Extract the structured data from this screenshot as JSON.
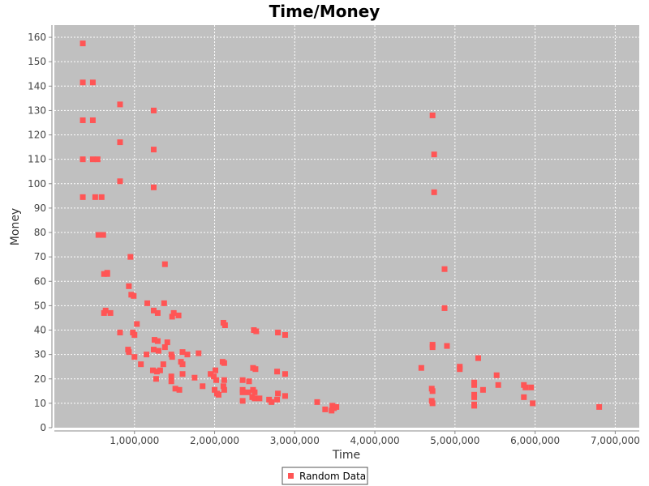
{
  "chart_data": {
    "type": "scatter",
    "title": "Time/Money",
    "xlabel": "Time",
    "ylabel": "Money",
    "xlim": [
      0,
      7300000
    ],
    "ylim": [
      0,
      165
    ],
    "x_ticks": [
      1000000,
      2000000,
      3000000,
      4000000,
      5000000,
      6000000,
      7000000
    ],
    "x_tick_labels": [
      "1,000,000",
      "2,000,000",
      "3,000,000",
      "4,000,000",
      "5,000,000",
      "6,000,000",
      "7,000,000"
    ],
    "y_ticks": [
      0,
      10,
      20,
      30,
      40,
      50,
      60,
      70,
      80,
      90,
      100,
      110,
      120,
      130,
      140,
      150,
      160
    ],
    "y_tick_labels": [
      "0",
      "10",
      "20",
      "30",
      "40",
      "50",
      "60",
      "70",
      "80",
      "90",
      "100",
      "110",
      "120",
      "130",
      "140",
      "150",
      "160"
    ],
    "grid": true,
    "legend": "bottom-center",
    "colors": {
      "series": "#ff5555",
      "plot_bg": "#c0c0c0",
      "grid": "#ffffff"
    },
    "series": [
      {
        "name": "Random Data",
        "points": [
          [
            355000,
            157.5
          ],
          [
            355000,
            141.5
          ],
          [
            480000,
            141.5
          ],
          [
            355000,
            126
          ],
          [
            480000,
            126
          ],
          [
            355000,
            110
          ],
          [
            480000,
            110
          ],
          [
            540000,
            110
          ],
          [
            820000,
            132.5
          ],
          [
            820000,
            117
          ],
          [
            820000,
            101
          ],
          [
            1240000,
            130
          ],
          [
            1240000,
            114
          ],
          [
            1240000,
            98.5
          ],
          [
            355000,
            94.5
          ],
          [
            510000,
            94.5
          ],
          [
            590000,
            94.5
          ],
          [
            550000,
            79
          ],
          [
            610000,
            79
          ],
          [
            950000,
            70
          ],
          [
            1380000,
            67
          ],
          [
            660000,
            63.5
          ],
          [
            620000,
            63
          ],
          [
            660000,
            63
          ],
          [
            930000,
            58
          ],
          [
            960000,
            54.5
          ],
          [
            990000,
            54
          ],
          [
            640000,
            48
          ],
          [
            620000,
            47
          ],
          [
            700000,
            47
          ],
          [
            1160000,
            51
          ],
          [
            1370000,
            51
          ],
          [
            1240000,
            48
          ],
          [
            1290000,
            47
          ],
          [
            1470000,
            45.5
          ],
          [
            1490000,
            47
          ],
          [
            1550000,
            46
          ],
          [
            1030000,
            42.5
          ],
          [
            820000,
            39
          ],
          [
            980000,
            39
          ],
          [
            1000000,
            38
          ],
          [
            1410000,
            35
          ],
          [
            1250000,
            36
          ],
          [
            1290000,
            35.5
          ],
          [
            1380000,
            33
          ],
          [
            920000,
            32
          ],
          [
            930000,
            31
          ],
          [
            1240000,
            32
          ],
          [
            1300000,
            31.5
          ],
          [
            1600000,
            31
          ],
          [
            1660000,
            30
          ],
          [
            1150000,
            30
          ],
          [
            1000000,
            29
          ],
          [
            1460000,
            30
          ],
          [
            1470000,
            29
          ],
          [
            1360000,
            26
          ],
          [
            1080000,
            26
          ],
          [
            1580000,
            27
          ],
          [
            1600000,
            26
          ],
          [
            1800000,
            30.5
          ],
          [
            1230000,
            23.5
          ],
          [
            1280000,
            23
          ],
          [
            1320000,
            23.5
          ],
          [
            1600000,
            22
          ],
          [
            1460000,
            21
          ],
          [
            1460000,
            19
          ],
          [
            1270000,
            20
          ],
          [
            1750000,
            20.5
          ],
          [
            1510000,
            16
          ],
          [
            1560000,
            15.5
          ],
          [
            1850000,
            17
          ],
          [
            1950000,
            22
          ],
          [
            1990000,
            21
          ],
          [
            2010000,
            23.5
          ],
          [
            2020000,
            19.5
          ],
          [
            2000000,
            15.5
          ],
          [
            2030000,
            14
          ],
          [
            2050000,
            13.5
          ],
          [
            2120000,
            26.5
          ],
          [
            2100000,
            27
          ],
          [
            2110000,
            43
          ],
          [
            2130000,
            42
          ],
          [
            2120000,
            19.5
          ],
          [
            2110000,
            17
          ],
          [
            2120000,
            15.5
          ],
          [
            2350000,
            19.5
          ],
          [
            2350000,
            15.5
          ],
          [
            2350000,
            14.5
          ],
          [
            2430000,
            19
          ],
          [
            2420000,
            14.5
          ],
          [
            2480000,
            15.5
          ],
          [
            2500000,
            14.5
          ],
          [
            2470000,
            12.5
          ],
          [
            2500000,
            12
          ],
          [
            2350000,
            11
          ],
          [
            2560000,
            12
          ],
          [
            2480000,
            24.5
          ],
          [
            2510000,
            24
          ],
          [
            2490000,
            40
          ],
          [
            2520000,
            39.5
          ],
          [
            2790000,
            39
          ],
          [
            2880000,
            38
          ],
          [
            2780000,
            23
          ],
          [
            2880000,
            22
          ],
          [
            2680000,
            11.5
          ],
          [
            2710000,
            10.5
          ],
          [
            2780000,
            11.5
          ],
          [
            2790000,
            14
          ],
          [
            2880000,
            13
          ],
          [
            3280000,
            10.5
          ],
          [
            3380000,
            7.5
          ],
          [
            3470000,
            9
          ],
          [
            3490000,
            8
          ],
          [
            3520000,
            8.5
          ],
          [
            3460000,
            7
          ],
          [
            4580000,
            24.5
          ],
          [
            4720000,
            128
          ],
          [
            4740000,
            112
          ],
          [
            4740000,
            96.5
          ],
          [
            4870000,
            65
          ],
          [
            4870000,
            49
          ],
          [
            4900000,
            33.5
          ],
          [
            4720000,
            34
          ],
          [
            4720000,
            33
          ],
          [
            4710000,
            16
          ],
          [
            4720000,
            15
          ],
          [
            4710000,
            11
          ],
          [
            4720000,
            10
          ],
          [
            5060000,
            25
          ],
          [
            5060000,
            24
          ],
          [
            5240000,
            18.5
          ],
          [
            5240000,
            17.5
          ],
          [
            5240000,
            13.5
          ],
          [
            5240000,
            12.5
          ],
          [
            5240000,
            9.5
          ],
          [
            5240000,
            9
          ],
          [
            5290000,
            28.5
          ],
          [
            5350000,
            15.5
          ],
          [
            5520000,
            21.5
          ],
          [
            5540000,
            17.5
          ],
          [
            5860000,
            17.5
          ],
          [
            5880000,
            16.5
          ],
          [
            5950000,
            16.5
          ],
          [
            5860000,
            12.5
          ],
          [
            5970000,
            10
          ],
          [
            6800000,
            8.5
          ]
        ]
      }
    ]
  }
}
